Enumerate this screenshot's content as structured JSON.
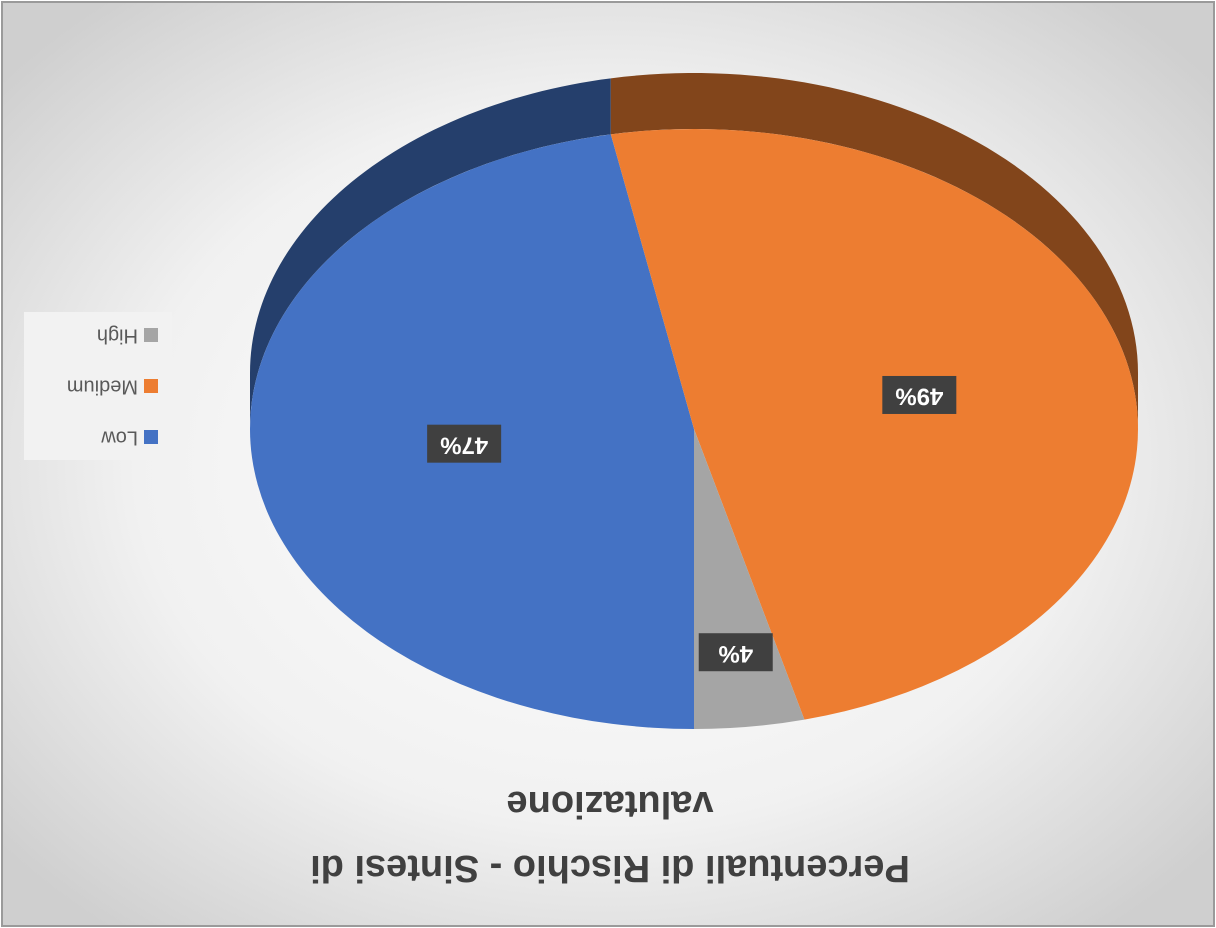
{
  "chart_data": {
    "type": "pie",
    "title": "Percentuali di Rischio - Sintesi di valutazione",
    "categories": [
      "Low",
      "Medium",
      "High"
    ],
    "values": [
      47,
      49,
      4
    ],
    "value_labels": [
      "47%",
      "49%",
      "4%"
    ],
    "colors": [
      "#4472c4",
      "#ed7d31",
      "#a5a5a5"
    ],
    "legend": "right"
  }
}
